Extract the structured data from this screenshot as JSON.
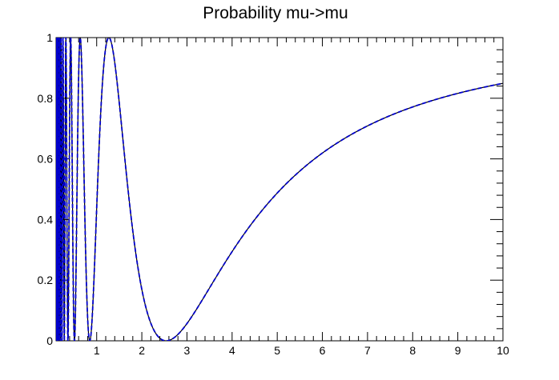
{
  "chart_data": {
    "type": "line",
    "title": "Probability mu->mu",
    "xlabel": "",
    "ylabel": "",
    "xlim": [
      0.1,
      10
    ],
    "ylim": [
      0,
      1
    ],
    "x_ticks": [
      "1",
      "2",
      "3",
      "4",
      "5",
      "6",
      "7",
      "8",
      "9",
      "10"
    ],
    "y_ticks": [
      "0",
      "0.2",
      "0.4",
      "0.6",
      "0.8",
      "1"
    ],
    "grid": false,
    "legend": false,
    "series": [
      {
        "style": "solid",
        "color": "#000000",
        "oscillation_scale": 1.27
      },
      {
        "style": "dashed",
        "color": "#0000cc",
        "oscillation_scale": 1.27
      }
    ],
    "points": [
      {
        "x": 1.27,
        "y": 1.0
      },
      {
        "x": 1.5,
        "y": 0.89
      },
      {
        "x": 2.0,
        "y": 0.38
      },
      {
        "x": 2.54,
        "y": 0.0
      },
      {
        "x": 3.0,
        "y": 0.04
      },
      {
        "x": 4.0,
        "y": 0.29
      },
      {
        "x": 5.0,
        "y": 0.5
      },
      {
        "x": 6.0,
        "y": 0.63
      },
      {
        "x": 7.0,
        "y": 0.72
      },
      {
        "x": 8.0,
        "y": 0.78
      },
      {
        "x": 9.0,
        "y": 0.82
      },
      {
        "x": 10.0,
        "y": 0.85
      }
    ]
  }
}
